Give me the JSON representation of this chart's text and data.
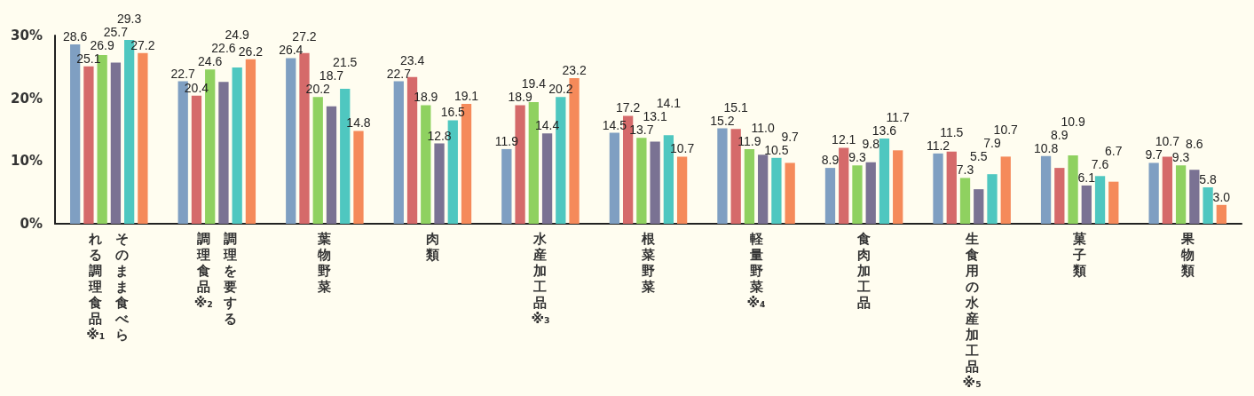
{
  "chart_data": {
    "type": "bar",
    "categories": [
      "そのまま食べられる調理食品※₁",
      "調理を要する調理食品※₂",
      "葉物野菜",
      "肉類",
      "水産加工品※₃",
      "根菜野菜",
      "軽量野菜※₄",
      "食肉加工品",
      "生食用の水産加工品※₅",
      "菓子類",
      "果物類"
    ],
    "series": [
      {
        "color": "#7f9fc2",
        "values": [
          28.6,
          22.7,
          26.4,
          22.7,
          11.9,
          14.5,
          15.2,
          8.9,
          11.2,
          10.8,
          9.7
        ],
        "value_labels": [
          "28.6",
          "22.7",
          "26.4",
          "22.7",
          "11.9",
          "14.5",
          "15.2",
          "8.9",
          "11.2",
          "10.8",
          "9.7"
        ]
      },
      {
        "color": "#d56a6a",
        "values": [
          25.1,
          20.4,
          27.2,
          23.4,
          18.9,
          17.2,
          15.1,
          12.1,
          11.5,
          8.9,
          10.7
        ],
        "value_labels": [
          "25.1",
          "20.4",
          "27.2",
          "23.4",
          "18.9",
          "17.2",
          "15.1",
          "12.1",
          "11.5",
          "8.9",
          "10.7"
        ]
      },
      {
        "color": "#8fd160",
        "values": [
          26.9,
          24.6,
          20.2,
          18.9,
          19.4,
          13.7,
          11.9,
          9.3,
          7.3,
          10.9,
          9.3
        ],
        "value_labels": [
          "26.9",
          "24.6",
          "20.2",
          "18.9",
          "19.4",
          "13.7",
          "11.9",
          "9.3",
          "7.3",
          "10.9",
          "9.3"
        ]
      },
      {
        "color": "#7a7293",
        "values": [
          25.7,
          22.6,
          18.7,
          12.8,
          14.4,
          13.1,
          11.0,
          9.8,
          5.5,
          6.1,
          8.6
        ],
        "value_labels": [
          "25.7",
          "22.6",
          "18.7",
          "12.8",
          "14.4",
          "13.1",
          "11.0",
          "9.8",
          "5.5",
          "6.1",
          "8.6"
        ]
      },
      {
        "color": "#4fc7c0",
        "values": [
          29.3,
          24.9,
          21.5,
          16.5,
          20.2,
          14.1,
          10.5,
          13.6,
          7.9,
          7.6,
          5.8
        ],
        "value_labels": [
          "29.3",
          "24.9",
          "21.5",
          "16.5",
          "20.2",
          "14.1",
          "10.5",
          "13.6",
          "7.9",
          "7.6",
          "5.8"
        ]
      },
      {
        "color": "#f58a5a",
        "values": [
          27.2,
          26.2,
          14.8,
          19.1,
          23.2,
          10.7,
          9.7,
          11.7,
          10.7,
          6.7,
          3.0
        ],
        "value_labels": [
          "27.2",
          "26.2",
          "14.8",
          "19.1",
          "23.2",
          "10.7",
          "9.7",
          "11.7",
          "10.7",
          "6.7",
          "3.0"
        ]
      }
    ],
    "ylim": [
      0,
      30
    ],
    "yticks": [
      {
        "value": 0,
        "label": "0%"
      },
      {
        "value": 10,
        "label": "10%"
      },
      {
        "value": 20,
        "label": "20%"
      },
      {
        "value": 30,
        "label": "30%"
      }
    ],
    "grid": false
  }
}
